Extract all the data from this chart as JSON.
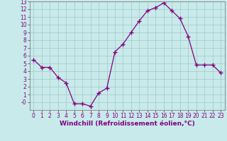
{
  "x": [
    0,
    1,
    2,
    3,
    4,
    5,
    6,
    7,
    8,
    9,
    10,
    11,
    12,
    13,
    14,
    15,
    16,
    17,
    18,
    19,
    20,
    21,
    22,
    23
  ],
  "y": [
    5.5,
    4.5,
    4.5,
    3.2,
    2.5,
    -0.2,
    -0.2,
    -0.5,
    1.2,
    1.8,
    6.5,
    7.5,
    9.0,
    10.5,
    11.8,
    12.2,
    12.8,
    11.8,
    10.8,
    8.5,
    4.8,
    4.8,
    4.8,
    3.8
  ],
  "line_color": "#800080",
  "marker": "+",
  "marker_size": 4,
  "bg_color": "#c8eaea",
  "grid_color": "#a8cccc",
  "xlabel": "Windchill (Refroidissement éolien,°C)",
  "xlabel_color": "#800080",
  "tick_color": "#800080",
  "spine_color": "#808080",
  "ylim": [
    -1,
    13
  ],
  "xlim": [
    -0.5,
    23.5
  ],
  "yticks": [
    0,
    1,
    2,
    3,
    4,
    5,
    6,
    7,
    8,
    9,
    10,
    11,
    12,
    13
  ],
  "ytick_labels": [
    "-0",
    "1",
    "2",
    "3",
    "4",
    "5",
    "6",
    "7",
    "8",
    "9",
    "10",
    "11",
    "12",
    "13"
  ],
  "xticks": [
    0,
    1,
    2,
    3,
    4,
    5,
    6,
    7,
    8,
    9,
    10,
    11,
    12,
    13,
    14,
    15,
    16,
    17,
    18,
    19,
    20,
    21,
    22,
    23
  ],
  "tick_fontsize": 5.5,
  "xlabel_fontsize": 6.5,
  "linewidth": 0.9
}
